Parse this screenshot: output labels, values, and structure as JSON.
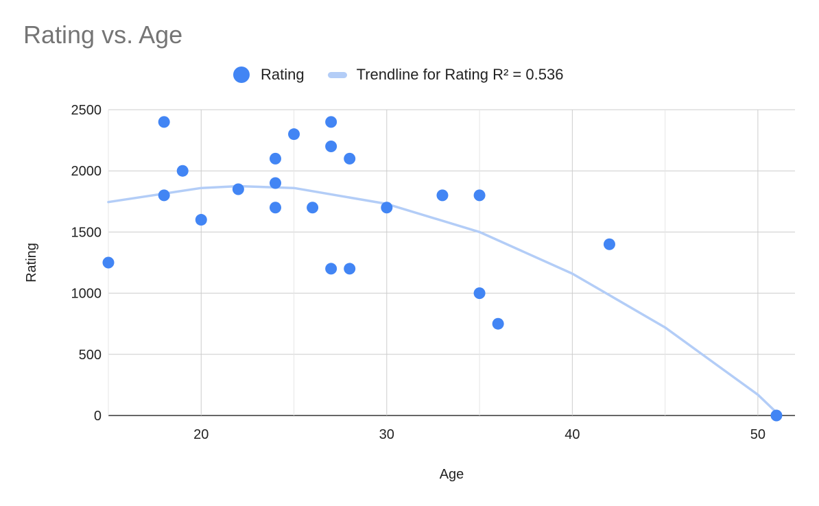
{
  "chart_data": {
    "type": "scatter",
    "title": "Rating vs. Age",
    "xlabel": "Age",
    "ylabel": "Rating",
    "xlim": [
      15,
      52
    ],
    "ylim": [
      0,
      2500
    ],
    "x_ticks": [
      20,
      30,
      40,
      50
    ],
    "y_ticks": [
      0,
      500,
      1000,
      1500,
      2000,
      2500
    ],
    "grid": true,
    "legend_position": "top",
    "series": [
      {
        "name": "Rating",
        "color": "#4285f4",
        "points": [
          {
            "x": 15,
            "y": 1250
          },
          {
            "x": 18,
            "y": 2400
          },
          {
            "x": 18,
            "y": 1800
          },
          {
            "x": 19,
            "y": 2000
          },
          {
            "x": 20,
            "y": 1600
          },
          {
            "x": 22,
            "y": 1850
          },
          {
            "x": 24,
            "y": 2100
          },
          {
            "x": 24,
            "y": 1900
          },
          {
            "x": 24,
            "y": 1700
          },
          {
            "x": 25,
            "y": 2300
          },
          {
            "x": 26,
            "y": 1700
          },
          {
            "x": 27,
            "y": 2400
          },
          {
            "x": 27,
            "y": 2200
          },
          {
            "x": 27,
            "y": 1200
          },
          {
            "x": 28,
            "y": 2100
          },
          {
            "x": 28,
            "y": 1200
          },
          {
            "x": 30,
            "y": 1700
          },
          {
            "x": 33,
            "y": 1800
          },
          {
            "x": 35,
            "y": 1800
          },
          {
            "x": 35,
            "y": 1000
          },
          {
            "x": 36,
            "y": 750
          },
          {
            "x": 42,
            "y": 1400
          },
          {
            "x": 51,
            "y": 0
          }
        ]
      }
    ],
    "trendline": {
      "name": "Trendline for Rating R² = 0.536",
      "type": "polynomial",
      "color": "#b3cdf7",
      "points": [
        {
          "x": 15,
          "y": 1745
        },
        {
          "x": 20,
          "y": 1860
        },
        {
          "x": 22,
          "y": 1875
        },
        {
          "x": 25,
          "y": 1860
        },
        {
          "x": 30,
          "y": 1730
        },
        {
          "x": 35,
          "y": 1500
        },
        {
          "x": 40,
          "y": 1160
        },
        {
          "x": 45,
          "y": 720
        },
        {
          "x": 50,
          "y": 170
        },
        {
          "x": 51,
          "y": 25
        }
      ]
    }
  }
}
